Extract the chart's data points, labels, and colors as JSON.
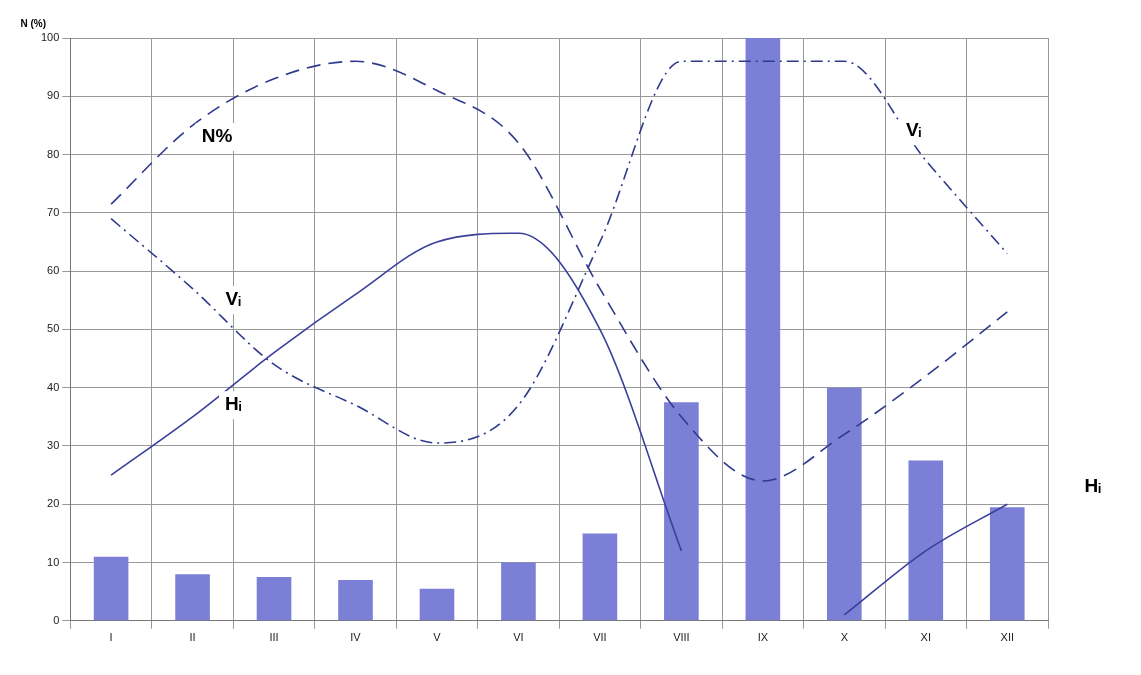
{
  "chart_data": {
    "type": "bar",
    "ylabel": "N (%)",
    "categories": [
      "I",
      "II",
      "III",
      "IV",
      "V",
      "VI",
      "VII",
      "VIII",
      "IX",
      "X",
      "XI",
      "XII"
    ],
    "ylim": [
      0,
      100
    ],
    "yticks": [
      0,
      10,
      20,
      30,
      40,
      50,
      60,
      70,
      80,
      90,
      100
    ],
    "grid": true,
    "series": [
      {
        "color": "#7b7fd6",
        "values": [
          11,
          8,
          7.5,
          7,
          5.5,
          10,
          15,
          37.5,
          100,
          40,
          27.5,
          19.5
        ]
      },
      {
        "type": "line",
        "name": "N%",
        "color": "#2e3a8c",
        "line_style": "dashed",
        "values": [
          71.5,
          85,
          93,
          96,
          91,
          82,
          57,
          35,
          24,
          32,
          42,
          53
        ]
      },
      {
        "type": "line",
        "name": "Vᵢ",
        "color": "#2e3a8c",
        "line_style": "dashdot",
        "values": [
          69,
          57,
          44,
          37,
          30.5,
          37,
          65,
          96,
          96,
          96,
          79,
          63
        ]
      },
      {
        "type": "line",
        "name": "Hᵢ",
        "color": "#3a3f9a",
        "line_style": "solid",
        "values": [
          25,
          35,
          46,
          56,
          65,
          66.5,
          50,
          12,
          null,
          1,
          12,
          20
        ]
      }
    ]
  }
}
